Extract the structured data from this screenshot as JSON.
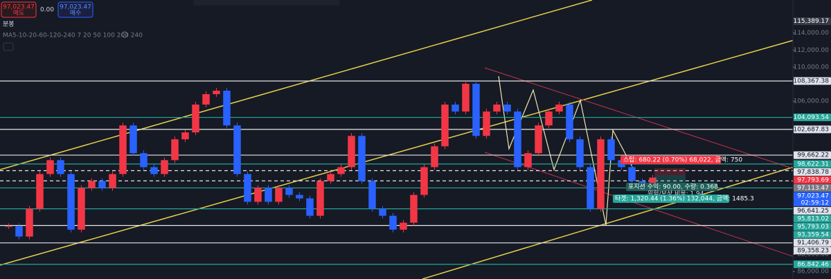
{
  "chart_data": {
    "type": "candlestick",
    "header": {
      "sell_price": "97,023.47",
      "sell_label": "매도",
      "spread": "0.00",
      "buy_price": "97,023.47",
      "buy_label": "매수",
      "interval": "분봉",
      "ma_legend": "MA5-10-20-60-120-240 7 20 50 100 200 240"
    },
    "values": [
      91320,
      90100,
      93360,
      97440,
      99070,
      97440,
      90910,
      95810,
      96620,
      95810,
      97440,
      103150,
      99890,
      98250,
      97440,
      99070,
      101520,
      102330,
      105600,
      106820,
      107230,
      103150,
      97440,
      94180,
      95810,
      94180,
      95810,
      94990,
      94580,
      92540,
      96620,
      97440,
      98250,
      101920,
      96620,
      93360,
      92540,
      90910,
      91730,
      94990,
      98250,
      100700,
      105600,
      104780,
      108040,
      101920,
      104780,
      105600,
      104780,
      98250,
      99890,
      103150,
      104780,
      105600,
      101520,
      98250,
      93360,
      101520,
      99070,
      98250,
      96620,
      96210,
      97023.47
    ],
    "up_color": "#f23645",
    "down_color": "#2962ff",
    "ylim": [
      85115,
      117879
    ],
    "yticks": [
      {
        "value": 114000,
        "label": "114,000.00"
      },
      {
        "value": 112000,
        "label": "112,000.00"
      },
      {
        "value": 110000,
        "label": "110,000.00"
      },
      {
        "value": 106000,
        "label": "106,000.00"
      },
      {
        "value": 88000,
        "label": "88,000.00"
      },
      {
        "value": 86000,
        "label": "86,000.00"
      }
    ],
    "levels": [
      {
        "value": 115389.17,
        "label": "115,389.17",
        "color": "#363a45",
        "line": "none"
      },
      {
        "value": 108367.38,
        "label": "108,367.38",
        "color": "#e0e3eb",
        "line": "solid"
      },
      {
        "value": 104093.54,
        "label": "104,093.54",
        "color": "#26a69a",
        "line": "solid"
      },
      {
        "value": 102687.83,
        "label": "102,687.83",
        "color": "#e0e3eb",
        "line": "solid"
      },
      {
        "value": 99662.22,
        "label": "99,662.22",
        "color": "#e0e3eb",
        "line": "solid"
      },
      {
        "value": 98622.31,
        "label": "98,622.31",
        "color": "#26a69a",
        "line": "solid"
      },
      {
        "value": 97838.78,
        "label": "97,838.78",
        "color": "#e0e3eb",
        "line": "dashed"
      },
      {
        "value": 97793.69,
        "label": "97,793.69",
        "color": "#f23645",
        "line": "none"
      },
      {
        "value": 97113.47,
        "label": "97,113.47",
        "color": "#787b86",
        "line": "none"
      },
      {
        "value": 97023.47,
        "label": "97,023.47",
        "color": "#2962ff",
        "line": "none"
      },
      {
        "value": 96641.25,
        "label": "96,641.25",
        "color": "#e0e3eb",
        "line": "dashed"
      },
      {
        "value": 95813.02,
        "label": "95,813.02",
        "color": "#26a69a",
        "line": "solid"
      },
      {
        "value": 95793.03,
        "label": "95,793.03",
        "color": "#26a69a",
        "line": "none"
      },
      {
        "value": 93359.54,
        "label": "93,359.54",
        "color": "#26a69a",
        "line": "solid"
      },
      {
        "value": 91406.79,
        "label": "91,406.79",
        "color": "#e0e3eb",
        "line": "solid"
      },
      {
        "value": 89358.23,
        "label": "89,358.23",
        "color": "#e0e3eb",
        "line": "solid"
      },
      {
        "value": 86842.46,
        "label": "86,842.46",
        "color": "#26a69a",
        "line": "solid"
      }
    ],
    "countdown": "02:59:12",
    "annotations": {
      "stop": "스탑: 680.22 (0.70%) 68,022, 금액: 750",
      "position": "포지션 수익: 90.00, 수량: 0.368",
      "risk_reward": "위험/보상 비율: 1.94",
      "target": "타겟: 1,320.44 (1.36%) 132,044, 금액: 1485.3"
    }
  }
}
